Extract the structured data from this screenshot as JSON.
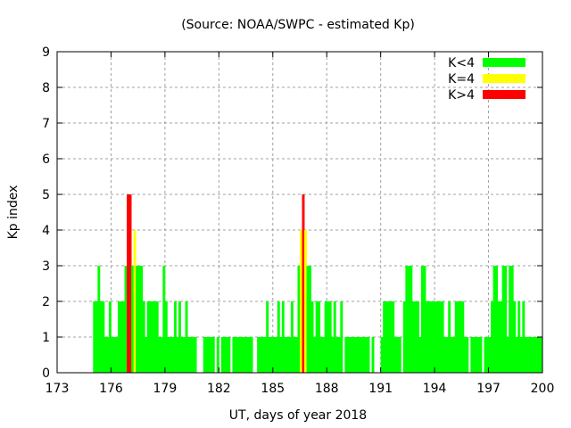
{
  "chart_data": {
    "type": "bar",
    "title": "(Source: NOAA/SWPC - estimated Kp)",
    "xlabel": "UT, days of year 2018",
    "ylabel": "Kp index",
    "xlim": [
      173,
      200
    ],
    "ylim": [
      0,
      9
    ],
    "xticks": [
      "173",
      "176",
      "179",
      "182",
      "185",
      "188",
      "191",
      "194",
      "197",
      "200"
    ],
    "yticks": [
      "0",
      "1",
      "2",
      "3",
      "4",
      "5",
      "6",
      "7",
      "8",
      "9"
    ],
    "grid": true,
    "legend_position": "top-right",
    "legend": [
      {
        "label": "K<4",
        "color": "#00ff00"
      },
      {
        "label": "K=4",
        "color": "#ffff00"
      },
      {
        "label": "K>4",
        "color": "#ff0000"
      }
    ],
    "bin_start_day": 175,
    "bin_width_days": 0.125,
    "values": [
      2,
      2,
      3,
      2,
      2,
      1,
      1,
      2,
      1,
      1,
      1,
      2,
      2,
      2,
      3,
      5,
      5,
      3,
      4,
      3,
      3,
      3,
      2,
      1,
      2,
      2,
      2,
      2,
      2,
      1,
      1,
      3,
      2,
      1,
      1,
      1,
      2,
      1,
      2,
      1,
      1,
      2,
      1,
      1,
      1,
      1,
      0,
      0,
      0,
      1,
      1,
      1,
      1,
      1,
      0,
      1,
      0,
      1,
      1,
      1,
      1,
      0,
      1,
      1,
      1,
      1,
      1,
      1,
      1,
      1,
      1,
      0,
      0,
      1,
      1,
      1,
      1,
      2,
      1,
      1,
      1,
      1,
      2,
      1,
      2,
      1,
      1,
      1,
      2,
      1,
      1,
      3,
      4,
      5,
      4,
      3,
      3,
      2,
      1,
      2,
      2,
      1,
      1,
      2,
      2,
      2,
      1,
      2,
      1,
      1,
      2,
      0,
      1,
      1,
      1,
      1,
      1,
      1,
      1,
      1,
      1,
      1,
      1,
      0,
      1,
      0,
      0,
      0,
      1,
      2,
      2,
      2,
      2,
      2,
      1,
      1,
      1,
      0,
      2,
      3,
      3,
      3,
      2,
      2,
      2,
      1,
      3,
      3,
      2,
      2,
      2,
      2,
      2,
      2,
      2,
      2,
      1,
      1,
      2,
      1,
      1,
      2,
      2,
      2,
      2,
      1,
      1,
      0,
      1,
      1,
      1,
      1,
      1,
      0,
      1,
      1,
      1,
      2,
      3,
      3,
      2,
      2,
      3,
      3,
      1,
      3,
      3,
      2,
      1,
      2,
      1,
      2,
      1,
      1,
      1,
      1,
      1,
      1,
      1,
      1
    ]
  }
}
